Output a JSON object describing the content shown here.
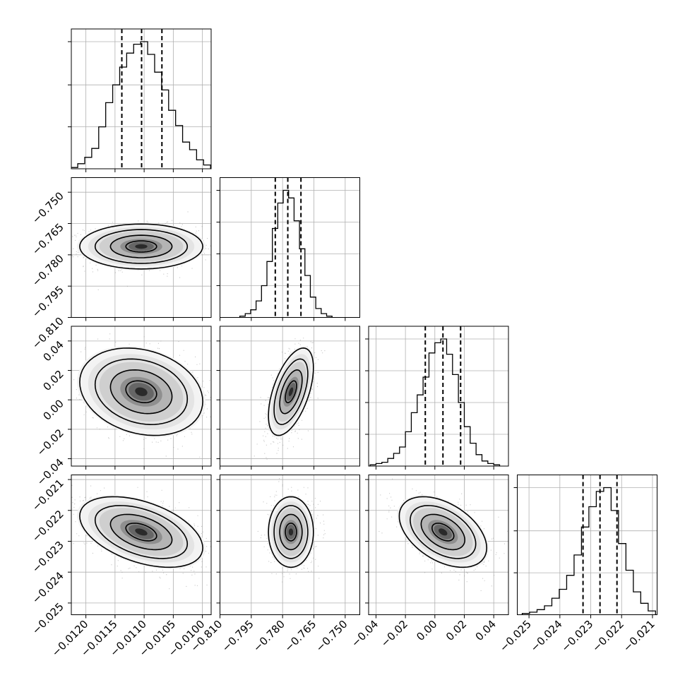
{
  "chart_data": {
    "type": "corner",
    "n_params": 4,
    "params": [
      {
        "lim": [
          -0.01225,
          -0.00985
        ],
        "ticks": [
          -0.012,
          -0.0115,
          -0.011,
          -0.0105,
          -0.01
        ],
        "tick_labels": [
          "−0.0120",
          "−0.0115",
          "−0.0110",
          "−0.0105",
          "−0.0100"
        ],
        "quantiles": [
          -0.011383,
          -0.011044,
          -0.010695
        ],
        "hist_max": 1.0,
        "hist_ticks": [
          0.33,
          0.66,
          1.0
        ],
        "hist": [
          [
            -0.0122,
            0.01
          ],
          [
            -0.01208,
            0.04
          ],
          [
            -0.01196,
            0.09
          ],
          [
            -0.01184,
            0.16
          ],
          [
            -0.01172,
            0.33
          ],
          [
            -0.0116,
            0.52
          ],
          [
            -0.01148,
            0.66
          ],
          [
            -0.01136,
            0.8
          ],
          [
            -0.01124,
            0.91
          ],
          [
            -0.01112,
            0.98
          ],
          [
            -0.011,
            1.0
          ],
          [
            -0.01088,
            0.9
          ],
          [
            -0.01076,
            0.76
          ],
          [
            -0.01064,
            0.62
          ],
          [
            -0.01052,
            0.46
          ],
          [
            -0.0104,
            0.34
          ],
          [
            -0.01028,
            0.21
          ],
          [
            -0.01016,
            0.15
          ],
          [
            -0.01004,
            0.07
          ],
          [
            -0.00992,
            0.03
          ]
        ]
      },
      {
        "lim": [
          -0.81,
          -0.743
        ],
        "ticks": [
          -0.81,
          -0.795,
          -0.78,
          -0.765,
          -0.75
        ],
        "tick_labels": [
          "−0.810",
          "−0.795",
          "−0.780",
          "−0.765",
          "−0.750"
        ],
        "quantiles": [
          -0.7835,
          -0.7775,
          -0.7712
        ],
        "hist_max": 1.0,
        "hist_ticks": [
          0.25,
          0.5,
          0.75,
          1.0
        ],
        "hist": [
          [
            -0.7992,
            0.01
          ],
          [
            -0.7966,
            0.03
          ],
          [
            -0.794,
            0.06
          ],
          [
            -0.7914,
            0.13
          ],
          [
            -0.7888,
            0.25
          ],
          [
            -0.7862,
            0.44
          ],
          [
            -0.7836,
            0.7
          ],
          [
            -0.781,
            0.9
          ],
          [
            -0.7784,
            1.0
          ],
          [
            -0.7758,
            0.94
          ],
          [
            -0.7732,
            0.76
          ],
          [
            -0.7706,
            0.54
          ],
          [
            -0.768,
            0.33
          ],
          [
            -0.7654,
            0.16
          ],
          [
            -0.7628,
            0.07
          ],
          [
            -0.7602,
            0.03
          ],
          [
            -0.7576,
            0.01
          ]
        ]
      },
      {
        "lim": [
          -0.045,
          0.05
        ],
        "ticks": [
          -0.04,
          -0.02,
          0.0,
          0.02,
          0.04
        ],
        "tick_labels": [
          "−0.04",
          "−0.02",
          "0.00",
          "0.02",
          "0.04"
        ],
        "quantiles": [
          -0.0065,
          0.0055,
          0.0175
        ],
        "hist_max": 1.0,
        "hist_ticks": [
          0.25,
          0.5,
          0.75,
          1.0
        ],
        "hist": [
          [
            -0.042,
            0.01
          ],
          [
            -0.038,
            0.02
          ],
          [
            -0.034,
            0.03
          ],
          [
            -0.03,
            0.06
          ],
          [
            -0.026,
            0.1
          ],
          [
            -0.022,
            0.15
          ],
          [
            -0.018,
            0.27
          ],
          [
            -0.014,
            0.42
          ],
          [
            -0.01,
            0.56
          ],
          [
            -0.006,
            0.7
          ],
          [
            -0.002,
            0.89
          ],
          [
            0.002,
            0.97
          ],
          [
            0.006,
            1.0
          ],
          [
            0.01,
            0.88
          ],
          [
            0.014,
            0.72
          ],
          [
            0.018,
            0.5
          ],
          [
            0.022,
            0.31
          ],
          [
            0.026,
            0.18
          ],
          [
            0.03,
            0.09
          ],
          [
            0.034,
            0.04
          ],
          [
            0.038,
            0.02
          ],
          [
            0.042,
            0.01
          ]
        ]
      },
      {
        "lim": [
          -0.02538,
          -0.02085
        ],
        "ticks": [
          -0.025,
          -0.024,
          -0.023,
          -0.022,
          -0.021
        ],
        "tick_labels": [
          "−0.025",
          "−0.024",
          "−0.023",
          "−0.022",
          "−0.021"
        ],
        "quantiles": [
          -0.02325,
          -0.0227,
          -0.02215
        ],
        "hist_max": 1.0,
        "hist_ticks": [
          0.33,
          0.66,
          1.0
        ],
        "hist": [
          [
            -0.0251,
            0.01
          ],
          [
            -0.02486,
            0.02
          ],
          [
            -0.02462,
            0.04
          ],
          [
            -0.02438,
            0.07
          ],
          [
            -0.02414,
            0.13
          ],
          [
            -0.0239,
            0.2
          ],
          [
            -0.02366,
            0.31
          ],
          [
            -0.02342,
            0.47
          ],
          [
            -0.02318,
            0.69
          ],
          [
            -0.02294,
            0.85
          ],
          [
            -0.0227,
            0.97
          ],
          [
            -0.02246,
            1.0
          ],
          [
            -0.02222,
            0.82
          ],
          [
            -0.02198,
            0.56
          ],
          [
            -0.02174,
            0.35
          ],
          [
            -0.0215,
            0.18
          ],
          [
            -0.02126,
            0.09
          ],
          [
            -0.02102,
            0.03
          ]
        ]
      }
    ],
    "pairs": [
      {
        "x": 0,
        "y": 1,
        "center": [
          -0.01105,
          -0.776
        ],
        "sd": [
          0.00048,
          0.0049
        ],
        "rho": 0.0
      },
      {
        "x": 0,
        "y": 2,
        "center": [
          -0.01105,
          0.0055
        ],
        "sd": [
          0.00048,
          0.0135
        ],
        "rho": -0.22
      },
      {
        "x": 1,
        "y": 2,
        "center": [
          -0.776,
          0.0055
        ],
        "sd": [
          0.0049,
          0.0135
        ],
        "rho": 0.55
      },
      {
        "x": 0,
        "y": 3,
        "center": [
          -0.01105,
          -0.0227
        ],
        "sd": [
          0.00048,
          0.00052
        ],
        "rho": -0.45
      },
      {
        "x": 1,
        "y": 3,
        "center": [
          -0.776,
          -0.0227
        ],
        "sd": [
          0.0049,
          0.00052
        ],
        "rho": 0.0
      },
      {
        "x": 2,
        "y": 3,
        "center": [
          0.0055,
          -0.0227
        ],
        "sd": [
          0.0135,
          0.00052
        ],
        "rho": -0.45
      }
    ],
    "contour_levels_sigma": [
      0.5,
      1.0,
      1.5,
      2.0
    ],
    "grid": true
  }
}
